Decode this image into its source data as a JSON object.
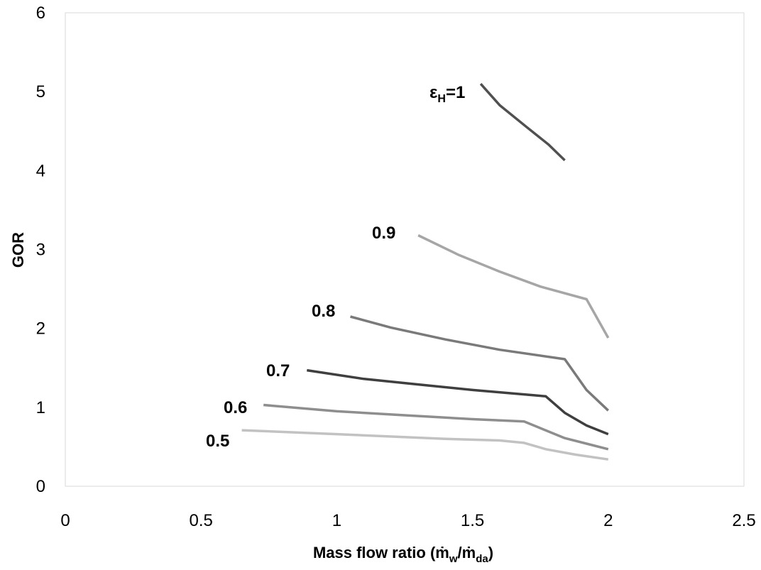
{
  "chart_data": {
    "type": "line",
    "title": "",
    "xlabel": {
      "text_pre": "Mass flow ratio (",
      "m_w": "ṁ",
      "sub_w": "w",
      "slash": "/",
      "m_da": "ṁ",
      "sub_da": "da",
      "text_post": ")"
    },
    "ylabel": "GOR",
    "xlim": [
      0,
      2.5
    ],
    "ylim": [
      0,
      6
    ],
    "xticks": [
      "0",
      "0.5",
      "1",
      "1.5",
      "2",
      "2.5"
    ],
    "yticks": [
      "0",
      "1",
      "2",
      "3",
      "4",
      "5",
      "6"
    ],
    "grid": false,
    "legend": "none",
    "series": [
      {
        "id": "eh1",
        "color": "#505050",
        "label": {
          "eps": "ε",
          "sub": "H",
          "rest": "=1"
        },
        "points": [
          [
            1.53,
            5.1
          ],
          [
            1.6,
            4.83
          ],
          [
            1.7,
            4.55
          ],
          [
            1.78,
            4.33
          ],
          [
            1.84,
            4.13
          ]
        ]
      },
      {
        "id": "eh09",
        "color": "#a6a6a6",
        "label": {
          "text": "0.9"
        },
        "points": [
          [
            1.3,
            3.18
          ],
          [
            1.45,
            2.93
          ],
          [
            1.6,
            2.72
          ],
          [
            1.75,
            2.53
          ],
          [
            1.92,
            2.37
          ],
          [
            2.0,
            1.88
          ]
        ]
      },
      {
        "id": "eh08",
        "color": "#7a7a7a",
        "label": {
          "text": "0.8"
        },
        "points": [
          [
            1.05,
            2.15
          ],
          [
            1.2,
            2.01
          ],
          [
            1.4,
            1.86
          ],
          [
            1.6,
            1.73
          ],
          [
            1.84,
            1.61
          ],
          [
            1.92,
            1.22
          ],
          [
            2.0,
            0.96
          ]
        ]
      },
      {
        "id": "eh07",
        "color": "#3f3f3f",
        "label": {
          "text": "0.7"
        },
        "points": [
          [
            0.89,
            1.47
          ],
          [
            1.1,
            1.36
          ],
          [
            1.3,
            1.29
          ],
          [
            1.5,
            1.22
          ],
          [
            1.77,
            1.14
          ],
          [
            1.84,
            0.93
          ],
          [
            1.92,
            0.77
          ],
          [
            2.0,
            0.66
          ]
        ]
      },
      {
        "id": "eh06",
        "color": "#8e8e8e",
        "label": {
          "text": "0.6"
        },
        "points": [
          [
            0.73,
            1.03
          ],
          [
            1.0,
            0.95
          ],
          [
            1.25,
            0.9
          ],
          [
            1.5,
            0.85
          ],
          [
            1.69,
            0.82
          ],
          [
            1.84,
            0.61
          ],
          [
            1.92,
            0.54
          ],
          [
            2.0,
            0.47
          ]
        ]
      },
      {
        "id": "eh05",
        "color": "#c2c2c2",
        "label": {
          "text": "0.5"
        },
        "points": [
          [
            0.65,
            0.71
          ],
          [
            1.0,
            0.66
          ],
          [
            1.4,
            0.6
          ],
          [
            1.6,
            0.58
          ],
          [
            1.69,
            0.55
          ],
          [
            1.77,
            0.47
          ],
          [
            1.88,
            0.4
          ],
          [
            2.0,
            0.34
          ]
        ]
      }
    ]
  }
}
